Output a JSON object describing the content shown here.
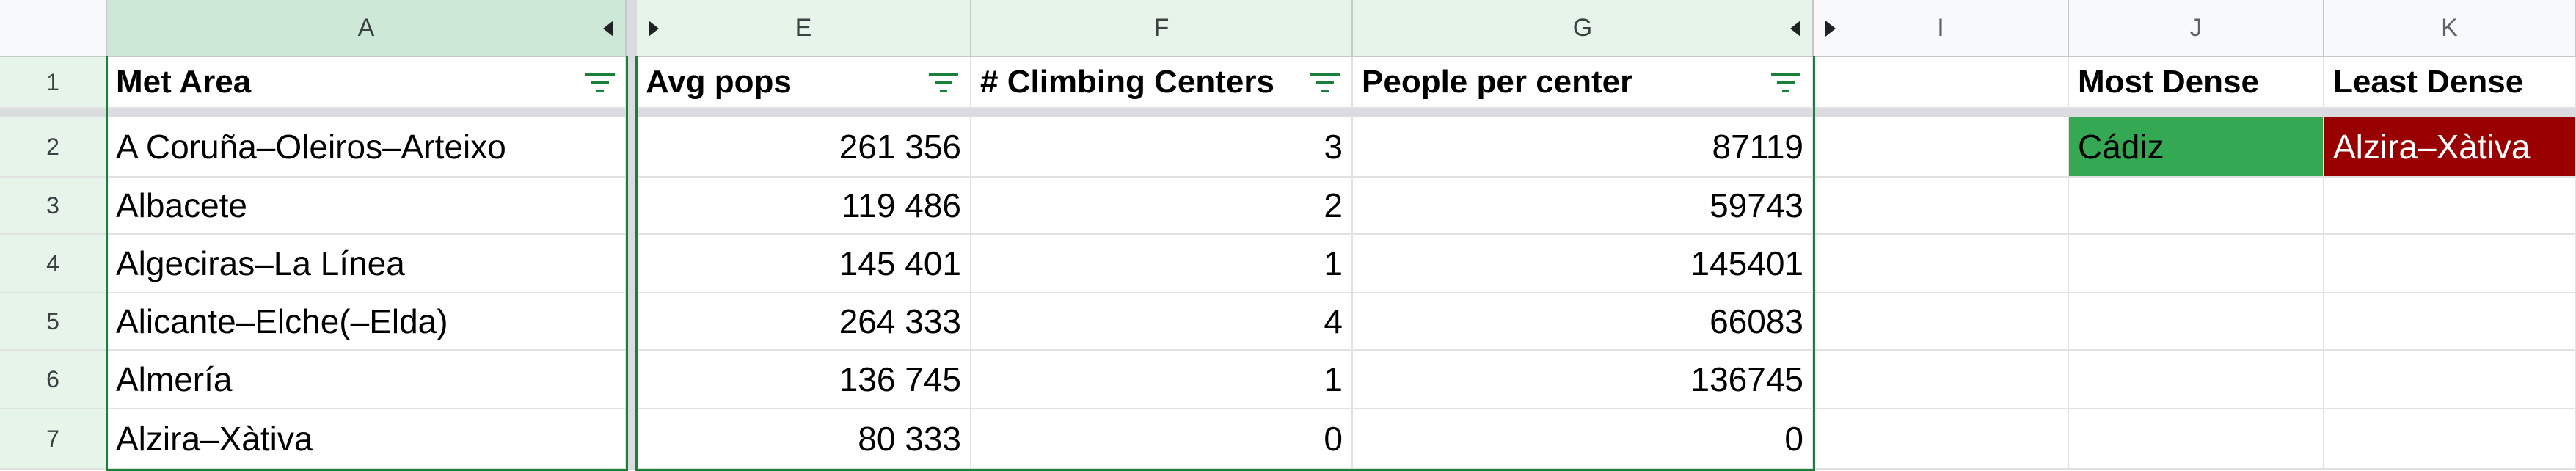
{
  "column_headers": [
    "A",
    "E",
    "F",
    "G",
    "I",
    "J",
    "K"
  ],
  "row_numbers": [
    "1",
    "2",
    "3",
    "4",
    "5",
    "6",
    "7"
  ],
  "header_row": {
    "met_area": "Met Area",
    "avg_pops": "Avg pops",
    "climbing_centers": "# Climbing Centers",
    "people_per_center": "People per center",
    "most_dense": "Most Dense",
    "least_dense": "Least Dense"
  },
  "rows": [
    {
      "met_area": "A Coruña–Oleiros–Arteixo",
      "avg_pops": "261 356",
      "centers": "3",
      "ppc": "87119"
    },
    {
      "met_area": "Albacete",
      "avg_pops": "119 486",
      "centers": "2",
      "ppc": "59743"
    },
    {
      "met_area": "Algeciras–La Línea",
      "avg_pops": "145 401",
      "centers": "1",
      "ppc": "145401"
    },
    {
      "met_area": "Alicante–Elche(–Elda)",
      "avg_pops": "264 333",
      "centers": "4",
      "ppc": "66083"
    },
    {
      "met_area": "Almería",
      "avg_pops": "136 745",
      "centers": "1",
      "ppc": "136745"
    },
    {
      "met_area": "Alzira–Xàtiva",
      "avg_pops": "80 333",
      "centers": "0",
      "ppc": "0"
    }
  ],
  "summary": {
    "most_dense_value": "Cádiz",
    "least_dense_value": "Alzira–Xàtiva"
  },
  "colors": {
    "most_dense_fill": "#34a853",
    "least_dense_fill": "#990000",
    "least_dense_text": "#ffffff"
  },
  "icons": {
    "filter": "filter-icon",
    "collapse_left": "chevron-left-icon",
    "expand_right": "chevron-right-icon"
  }
}
